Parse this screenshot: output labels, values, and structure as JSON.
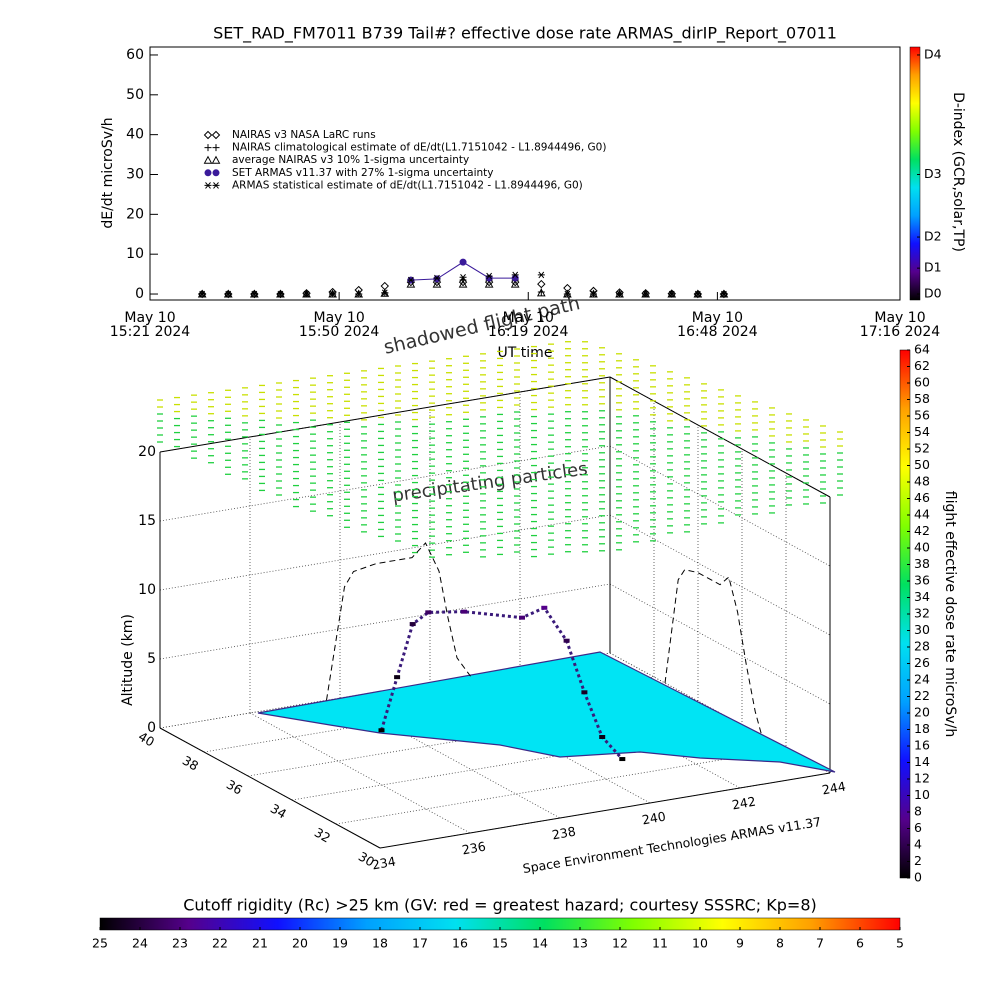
{
  "chart_data": [
    {
      "type": "scatter",
      "title": "SET_RAD_FM7011  B739 Tail#? effective dose rate ARMAS_dirIP_Report_07011",
      "y_label": "dE/dt microSv/h",
      "x_label": "UT time",
      "xlim": [
        "2024-05-10 15:21",
        "2024-05-10 17:16"
      ],
      "xticks": [
        {
          "value": "2024-05-10 15:21",
          "label": "May 10\n15:21 2024"
        },
        {
          "value": "2024-05-10 15:50",
          "label": "May 10\n15:50 2024"
        },
        {
          "value": "2024-05-10 16:19",
          "label": "May 10\n16:19 2024"
        },
        {
          "value": "2024-05-10 16:48",
          "label": "May 10\n16:48 2024"
        },
        {
          "value": "2024-05-10 17:16",
          "label": "May 10\n17:16 2024"
        }
      ],
      "ylim": [
        -1.5,
        62
      ],
      "yticks": [
        0,
        10,
        20,
        30,
        40,
        50,
        60
      ],
      "grid": false,
      "legend": "upper left",
      "x": [
        "2024-05-10 15:29",
        "2024-05-10 15:33",
        "2024-05-10 15:37",
        "2024-05-10 15:41",
        "2024-05-10 15:45",
        "2024-05-10 15:49",
        "2024-05-10 15:53",
        "2024-05-10 15:57",
        "2024-05-10 16:01",
        "2024-05-10 16:05",
        "2024-05-10 16:09",
        "2024-05-10 16:13",
        "2024-05-10 16:17",
        "2024-05-10 16:21",
        "2024-05-10 16:25",
        "2024-05-10 16:29",
        "2024-05-10 16:33",
        "2024-05-10 16:37",
        "2024-05-10 16:41",
        "2024-05-10 16:45",
        "2024-05-10 16:49"
      ],
      "series": [
        {
          "name": "NAIRAS v3 NASA LaRC runs",
          "marker": "diamond",
          "color": "#000000",
          "line": false,
          "values": [
            0,
            0,
            0,
            0,
            0.2,
            0.5,
            1,
            2,
            3,
            3,
            3,
            3,
            3,
            2.5,
            1.5,
            0.8,
            0.4,
            0.2,
            0.1,
            0,
            0
          ]
        },
        {
          "name": "NAIRAS climatological estimate of dE/dt(L1.7151042 - L1.8944496, G0)",
          "marker": "plus",
          "color": "#000000",
          "line": false,
          "values": [
            0,
            0,
            0,
            0,
            0,
            0,
            0,
            0.3,
            3.5,
            3.5,
            3.5,
            3.5,
            3.5,
            0.5,
            0,
            0,
            0,
            0,
            0,
            0,
            0
          ]
        },
        {
          "name": "average NAIRAS v3 10% 1-sigma uncertainty",
          "marker": "triangle",
          "color": "#000000",
          "line": false,
          "values": [
            0,
            0,
            0,
            0,
            0,
            0,
            0,
            0.2,
            2.5,
            2.5,
            2.5,
            2.5,
            2.5,
            0.3,
            0,
            0,
            0,
            0,
            0,
            0,
            0
          ]
        },
        {
          "name": "SET ARMAS v11.37 with 27% 1-sigma uncertainty",
          "marker": "circle",
          "color": "#3a1a9a",
          "line": true,
          "values": [
            null,
            null,
            null,
            null,
            null,
            null,
            null,
            null,
            3.5,
            3.8,
            8,
            4,
            4,
            null,
            null,
            null,
            null,
            null,
            null,
            null,
            null
          ]
        },
        {
          "name": "ARMAS statistical estimate of dE/dt(L1.7151042 - L1.8944496, G0)",
          "marker": "asterisk",
          "color": "#000000",
          "line": false,
          "values": [
            0,
            0,
            0,
            0,
            0,
            0,
            0,
            0.3,
            3.5,
            4,
            4.2,
            4.5,
            4.8,
            4.8,
            0,
            0,
            0,
            0,
            0,
            0,
            0
          ]
        }
      ],
      "colorbar": {
        "label": "D-index (GCR,solar,TP)",
        "lim": [
          -1.5,
          62
        ],
        "colormap": [
          "#000000",
          "#55008c",
          "#1010ff",
          "#00a0ff",
          "#00e0f0",
          "#00e060",
          "#80ff00",
          "#ffff00",
          "#ffa000",
          "#ff0000"
        ],
        "ticks": [
          {
            "value": 0,
            "label": "D0"
          },
          {
            "value": 6.5,
            "label": "D1"
          },
          {
            "value": 14.3,
            "label": "D2"
          },
          {
            "value": 30,
            "label": "D3"
          },
          {
            "value": 60,
            "label": "D4"
          }
        ]
      }
    },
    {
      "type": "scatter3d",
      "z_label": "Altitude (km)",
      "zlim": [
        0,
        20
      ],
      "zticks": [
        0,
        5,
        10,
        15,
        20
      ],
      "xlim": [
        40,
        30
      ],
      "xticks": [
        40,
        38,
        36,
        34,
        32,
        30
      ],
      "ylim": [
        234,
        244
      ],
      "yticks": [
        234,
        236,
        238,
        240,
        242,
        244
      ],
      "grid": true,
      "annotations": [
        "shadowed flight path",
        "precipitating particles"
      ],
      "credit": "Space Environment Technologies ARMAS v11.37",
      "series": [
        {
          "color": "#3a1a7a",
          "lat": [
            37.5,
            37.2,
            36.9,
            36.6,
            36.0,
            35.0,
            34.6,
            34.2,
            33.8,
            33.4,
            33.1
          ],
          "lon": [
            237.7,
            237.9,
            238.1,
            238.3,
            238.8,
            239.6,
            239.9,
            240.2,
            240.4,
            240.6,
            240.9
          ],
          "alt": [
            0,
            4,
            8,
            9,
            9.3,
            9.3,
            10.2,
            8,
            4.5,
            1.5,
            0
          ],
          "dose": [
            0,
            1,
            3,
            5,
            6,
            6,
            7,
            4,
            2,
            1,
            0
          ]
        }
      ],
      "colorbar": {
        "label": "flight effective dose rate microSv/h",
        "lim": [
          0,
          64
        ],
        "colormap": [
          "#000000",
          "#55008c",
          "#1010ff",
          "#00a0ff",
          "#00e0f0",
          "#00e060",
          "#80ff00",
          "#ffff00",
          "#ffa000",
          "#ff0000"
        ],
        "ticks": [
          0,
          2,
          4,
          6,
          8,
          10,
          12,
          14,
          16,
          18,
          20,
          22,
          24,
          26,
          28,
          30,
          32,
          34,
          36,
          38,
          40,
          42,
          44,
          46,
          48,
          50,
          52,
          54,
          56,
          58,
          60,
          62,
          64
        ]
      }
    },
    {
      "type": "colorbar",
      "title": "Cutoff rigidity (Rc) >25 km (GV: red = greatest hazard; courtesy SSSRC; Kp=8)",
      "lim": [
        25,
        5
      ],
      "colormap": [
        "#000000",
        "#55008c",
        "#1010ff",
        "#00a0ff",
        "#00e0f0",
        "#00e060",
        "#80ff00",
        "#ffff00",
        "#ffa000",
        "#ff0000"
      ],
      "ticks": [
        25,
        24,
        23,
        22,
        21,
        20,
        19,
        18,
        17,
        16,
        15,
        14,
        13,
        12,
        11,
        10,
        9,
        8,
        7,
        6,
        5
      ]
    }
  ]
}
